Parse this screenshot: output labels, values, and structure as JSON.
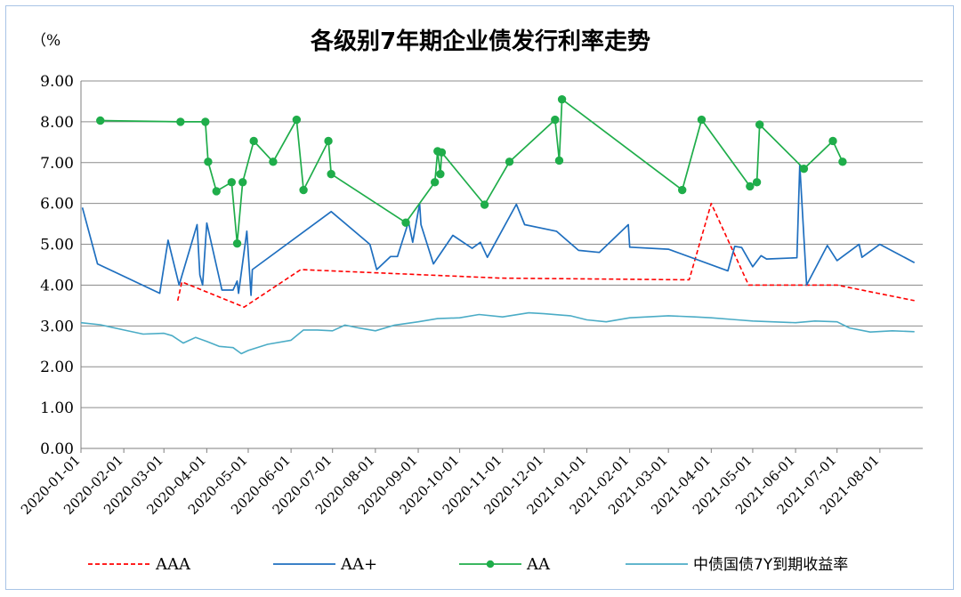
{
  "chart_data": {
    "type": "line",
    "title": "各级别7年期企业债发行利率走势",
    "unit_label": "（%",
    "ylim": [
      0,
      9
    ],
    "y_ticks": [
      "0.00",
      "1.00",
      "2.00",
      "3.00",
      "4.00",
      "5.00",
      "6.00",
      "7.00",
      "8.00",
      "9.00"
    ],
    "x_range": [
      "2020-01-01",
      "2021-09-01"
    ],
    "x_ticks": [
      "2020-01-01",
      "2020-02-01",
      "2020-03-01",
      "2020-04-01",
      "2020-05-01",
      "2020-06-01",
      "2020-07-01",
      "2020-08-01",
      "2020-09-01",
      "2020-10-01",
      "2020-11-01",
      "2020-12-01",
      "2021-01-01",
      "2021-02-01",
      "2021-03-01",
      "2021-04-01",
      "2021-05-01",
      "2021-06-01",
      "2021-07-01",
      "2021-08-01"
    ],
    "grid": true,
    "legend_position": "bottom",
    "series": [
      {
        "name": "AAA",
        "color": "#ff0000",
        "style": "dashed",
        "points": [
          [
            "2020-03-11",
            3.62
          ],
          [
            "2020-03-14",
            4.08
          ],
          [
            "2020-04-28",
            3.46
          ],
          [
            "2020-06-08",
            4.38
          ],
          [
            "2020-10-31",
            4.17
          ],
          [
            "2021-03-16",
            4.13
          ],
          [
            "2021-04-01",
            6.0
          ],
          [
            "2021-04-28",
            4.0
          ],
          [
            "2021-07-01",
            4.0
          ],
          [
            "2021-08-26",
            3.62
          ]
        ]
      },
      {
        "name": "AA+",
        "color": "#1f6fbf",
        "style": "solid",
        "points": [
          [
            "2020-01-02",
            5.9
          ],
          [
            "2020-01-13",
            4.52
          ],
          [
            "2020-02-27",
            3.8
          ],
          [
            "2020-03-04",
            5.1
          ],
          [
            "2020-03-12",
            4.0
          ],
          [
            "2020-03-25",
            5.48
          ],
          [
            "2020-03-27",
            4.25
          ],
          [
            "2020-03-29",
            4.0
          ],
          [
            "2020-04-01",
            5.52
          ],
          [
            "2020-04-12",
            3.88
          ],
          [
            "2020-04-20",
            3.88
          ],
          [
            "2020-04-23",
            4.1
          ],
          [
            "2020-04-24",
            3.8
          ],
          [
            "2020-04-30",
            5.32
          ],
          [
            "2020-05-03",
            3.75
          ],
          [
            "2020-05-04",
            4.38
          ],
          [
            "2020-06-30",
            5.8
          ],
          [
            "2020-07-28",
            5.0
          ],
          [
            "2020-08-02",
            4.38
          ],
          [
            "2020-08-12",
            4.7
          ],
          [
            "2020-08-17",
            4.7
          ],
          [
            "2020-08-25",
            5.55
          ],
          [
            "2020-08-28",
            5.05
          ],
          [
            "2020-09-02",
            6.0
          ],
          [
            "2020-09-03",
            5.48
          ],
          [
            "2020-09-12",
            4.52
          ],
          [
            "2020-09-26",
            5.22
          ],
          [
            "2020-10-10",
            4.9
          ],
          [
            "2020-10-16",
            5.05
          ],
          [
            "2020-10-21",
            4.68
          ],
          [
            "2020-11-11",
            5.98
          ],
          [
            "2020-11-17",
            5.48
          ],
          [
            "2020-12-10",
            5.32
          ],
          [
            "2020-12-26",
            4.85
          ],
          [
            "2021-01-10",
            4.8
          ],
          [
            "2021-01-31",
            5.48
          ],
          [
            "2021-02-01",
            4.93
          ],
          [
            "2021-03-01",
            4.88
          ],
          [
            "2021-04-13",
            4.35
          ],
          [
            "2021-04-18",
            4.95
          ],
          [
            "2021-04-23",
            4.92
          ],
          [
            "2021-05-01",
            4.45
          ],
          [
            "2021-05-07",
            4.72
          ],
          [
            "2021-05-11",
            4.64
          ],
          [
            "2021-06-02",
            4.67
          ],
          [
            "2021-06-04",
            6.95
          ],
          [
            "2021-06-09",
            4.0
          ],
          [
            "2021-06-24",
            4.97
          ],
          [
            "2021-07-01",
            4.6
          ],
          [
            "2021-07-17",
            5.0
          ],
          [
            "2021-07-19",
            4.68
          ],
          [
            "2021-08-01",
            5.0
          ],
          [
            "2021-08-26",
            4.55
          ]
        ]
      },
      {
        "name": "AA",
        "color": "#1fad4a",
        "style": "solid-markers",
        "points": [
          [
            "2020-01-15",
            8.03
          ],
          [
            "2020-03-13",
            8.0
          ],
          [
            "2020-03-31",
            8.0
          ],
          [
            "2020-04-02",
            7.02
          ],
          [
            "2020-04-08",
            6.3
          ],
          [
            "2020-04-19",
            6.52
          ],
          [
            "2020-04-23",
            5.02
          ],
          [
            "2020-04-27",
            6.52
          ],
          [
            "2020-05-05",
            7.53
          ],
          [
            "2020-05-19",
            7.02
          ],
          [
            "2020-06-05",
            8.05
          ],
          [
            "2020-06-10",
            6.33
          ],
          [
            "2020-06-28",
            7.53
          ],
          [
            "2020-06-30",
            6.72
          ],
          [
            "2020-08-23",
            5.53
          ],
          [
            "2020-09-13",
            6.52
          ],
          [
            "2020-09-15",
            7.28
          ],
          [
            "2020-09-17",
            6.72
          ],
          [
            "2020-09-18",
            7.25
          ],
          [
            "2020-10-19",
            5.97
          ],
          [
            "2020-11-06",
            7.02
          ],
          [
            "2020-12-09",
            8.05
          ],
          [
            "2020-12-12",
            7.05
          ],
          [
            "2020-12-14",
            8.55
          ],
          [
            "2021-03-11",
            6.33
          ],
          [
            "2021-03-25",
            8.05
          ],
          [
            "2021-04-29",
            6.42
          ],
          [
            "2021-05-04",
            6.52
          ],
          [
            "2021-05-06",
            7.93
          ],
          [
            "2021-06-07",
            6.85
          ],
          [
            "2021-06-28",
            7.53
          ],
          [
            "2021-07-05",
            7.02
          ]
        ]
      },
      {
        "name": "中债国债7Y到期收益率",
        "color": "#4bacc6",
        "style": "solid-thin",
        "points": [
          [
            "2020-01-01",
            3.08
          ],
          [
            "2020-01-15",
            3.03
          ],
          [
            "2020-02-01",
            2.9
          ],
          [
            "2020-02-15",
            2.8
          ],
          [
            "2020-03-01",
            2.82
          ],
          [
            "2020-03-07",
            2.76
          ],
          [
            "2020-03-15",
            2.58
          ],
          [
            "2020-03-24",
            2.72
          ],
          [
            "2020-04-01",
            2.62
          ],
          [
            "2020-04-10",
            2.5
          ],
          [
            "2020-04-20",
            2.47
          ],
          [
            "2020-04-26",
            2.32
          ],
          [
            "2020-05-01",
            2.4
          ],
          [
            "2020-05-15",
            2.55
          ],
          [
            "2020-06-01",
            2.65
          ],
          [
            "2020-06-10",
            2.9
          ],
          [
            "2020-06-20",
            2.9
          ],
          [
            "2020-07-01",
            2.88
          ],
          [
            "2020-07-10",
            3.02
          ],
          [
            "2020-07-20",
            2.95
          ],
          [
            "2020-08-01",
            2.88
          ],
          [
            "2020-08-15",
            3.02
          ],
          [
            "2020-09-01",
            3.1
          ],
          [
            "2020-09-15",
            3.18
          ],
          [
            "2020-10-01",
            3.2
          ],
          [
            "2020-10-15",
            3.28
          ],
          [
            "2020-11-01",
            3.22
          ],
          [
            "2020-11-20",
            3.32
          ],
          [
            "2020-12-01",
            3.3
          ],
          [
            "2020-12-20",
            3.25
          ],
          [
            "2021-01-01",
            3.15
          ],
          [
            "2021-01-15",
            3.1
          ],
          [
            "2021-02-01",
            3.2
          ],
          [
            "2021-03-01",
            3.25
          ],
          [
            "2021-03-20",
            3.22
          ],
          [
            "2021-04-01",
            3.2
          ],
          [
            "2021-04-20",
            3.15
          ],
          [
            "2021-05-01",
            3.12
          ],
          [
            "2021-05-15",
            3.1
          ],
          [
            "2021-06-01",
            3.08
          ],
          [
            "2021-06-15",
            3.12
          ],
          [
            "2021-07-01",
            3.1
          ],
          [
            "2021-07-10",
            2.95
          ],
          [
            "2021-07-25",
            2.85
          ],
          [
            "2021-08-10",
            2.88
          ],
          [
            "2021-08-26",
            2.86
          ]
        ]
      }
    ]
  }
}
